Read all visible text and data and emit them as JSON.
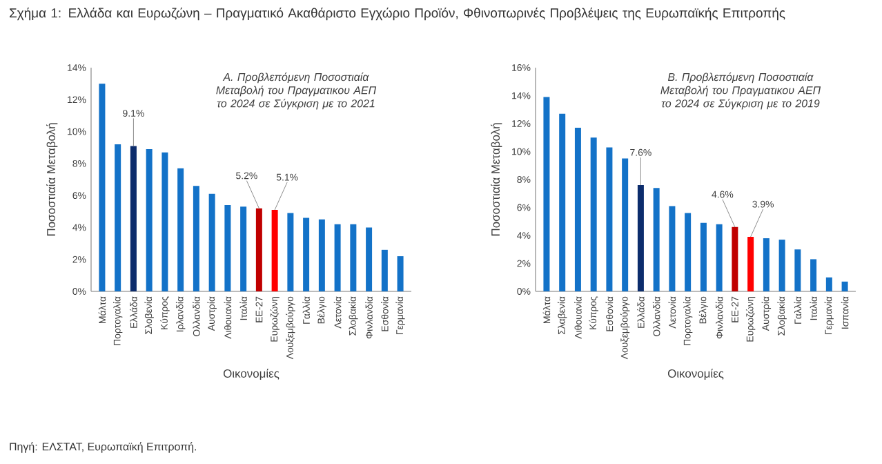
{
  "chart_data": [
    {
      "type": "bar",
      "title": "Α. Προβλεπόμενη Ποσοστιαία Μεταβολή του Πραγματικου ΑΕΠ το 2024 σε Σύγκριση με το 2021",
      "xlabel": "Οικονομίες",
      "ylabel": "Ποσοστιαία Μεταβολή",
      "categories": [
        "Μάλτα",
        "Πορτογαλία",
        "Ελλάδα",
        "Σλοβενία",
        "Κύπρος",
        "Ιρλανδία",
        "Ολλανδία",
        "Αυστρία",
        "Λιθουανία",
        "Ιταλία",
        "ΕΕ-27",
        "Ευρωζώνη",
        "Λουξεμβούργο",
        "Γαλλία",
        "Βέλγιο",
        "Λετονία",
        "Σλοβακία",
        "Φινλανδία",
        "Εσθονία",
        "Γερμανία"
      ],
      "values": [
        13.0,
        9.2,
        9.1,
        8.9,
        8.7,
        7.7,
        6.6,
        6.1,
        5.4,
        5.3,
        5.2,
        5.1,
        4.9,
        4.6,
        4.5,
        4.2,
        4.2,
        4.0,
        2.6,
        2.2
      ],
      "colors": [
        "#1372c8",
        "#1372c8",
        "#0c2c6c",
        "#1372c8",
        "#1372c8",
        "#1372c8",
        "#1372c8",
        "#1372c8",
        "#1372c8",
        "#1372c8",
        "#c00000",
        "#ff0000",
        "#1372c8",
        "#1372c8",
        "#1372c8",
        "#1372c8",
        "#1372c8",
        "#1372c8",
        "#1372c8",
        "#1372c8"
      ],
      "value_labels": [
        null,
        null,
        "9.1%",
        null,
        null,
        null,
        null,
        null,
        null,
        null,
        "5.2%",
        "5.1%",
        null,
        null,
        null,
        null,
        null,
        null,
        null,
        null
      ],
      "ylim": [
        0,
        14
      ],
      "yticks": [
        {
          "value": 0,
          "label": "0%"
        },
        {
          "value": 2,
          "label": "2%"
        },
        {
          "value": 4,
          "label": "4%"
        },
        {
          "value": 6,
          "label": "6%"
        },
        {
          "value": 8,
          "label": "8%"
        },
        {
          "value": 10,
          "label": "10%"
        },
        {
          "value": 12,
          "label": "12%"
        },
        {
          "value": 14,
          "label": "14%"
        }
      ],
      "annotations": [
        "Σχήμα 1: Ελλάδα και Ευρωζώνη – Πραγματικό Ακαθάριστο Εγχώριο Προϊόν, Φθινοπωρινές Προβλέψεις της Ευρωπαϊκής Επιτροπής",
        "Πηγή: ΕΛΣΤΑΤ, Ευρωπαϊκή Επιτροπή."
      ]
    },
    {
      "type": "bar",
      "title": "Β. Προβλεπόμενη Ποσοστιαία Μεταβολή του Πραγματικου ΑΕΠ το 2024 σε Σύγκριση με το 2019",
      "xlabel": "Οικονομίες",
      "ylabel": "Ποσοστιαία Μεταβολή",
      "categories": [
        "Μάλτα",
        "Σλαβενία",
        "Λιθουανία",
        "Κύπρος",
        "Εσθονία",
        "Λουξεμβούργο",
        "Ελλάδα",
        "Ολλανδία",
        "Λετονία",
        "Πορτογαλία",
        "Βέλγιο",
        "Φινλανδία",
        "ΕΕ-27",
        "Ευρωζώνη",
        "Αυστρία",
        "Σλοβακία",
        "Γαλλία",
        "Ιταλία",
        "Γερμανία",
        "Ισπανία"
      ],
      "values": [
        13.9,
        12.7,
        11.7,
        11.0,
        10.3,
        9.5,
        7.6,
        7.4,
        6.1,
        5.6,
        4.9,
        4.8,
        4.6,
        3.9,
        3.8,
        3.7,
        3.0,
        2.3,
        1.0,
        0.7
      ],
      "colors": [
        "#1372c8",
        "#1372c8",
        "#1372c8",
        "#1372c8",
        "#1372c8",
        "#1372c8",
        "#0c2c6c",
        "#1372c8",
        "#1372c8",
        "#1372c8",
        "#1372c8",
        "#1372c8",
        "#c00000",
        "#ff0000",
        "#1372c8",
        "#1372c8",
        "#1372c8",
        "#1372c8",
        "#1372c8",
        "#1372c8"
      ],
      "value_labels": [
        null,
        null,
        null,
        null,
        null,
        null,
        "7.6%",
        null,
        null,
        null,
        null,
        null,
        "4.6%",
        "3.9%",
        null,
        null,
        null,
        null,
        null,
        null
      ],
      "ylim": [
        0,
        16
      ],
      "yticks": [
        {
          "value": 0,
          "label": "0%"
        },
        {
          "value": 2,
          "label": "2%"
        },
        {
          "value": 4,
          "label": "4%"
        },
        {
          "value": 6,
          "label": "6%"
        },
        {
          "value": 8,
          "label": "8%"
        },
        {
          "value": 10,
          "label": "10%"
        },
        {
          "value": 12,
          "label": "12%"
        },
        {
          "value": 14,
          "label": "14%"
        },
        {
          "value": 16,
          "label": "16%"
        }
      ]
    }
  ]
}
